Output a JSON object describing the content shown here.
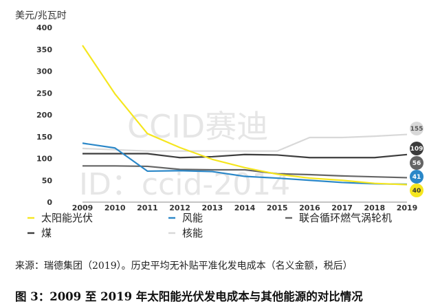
{
  "chart_data": {
    "type": "line",
    "ylabel": "美元/兆瓦时",
    "categories": [
      "2009",
      "2010",
      "2011",
      "2012",
      "2013",
      "2014",
      "2015",
      "2016",
      "2017",
      "2018",
      "2019"
    ],
    "ylim": [
      0,
      400
    ],
    "yticks": [
      0,
      50,
      100,
      150,
      200,
      250,
      300,
      350,
      400
    ],
    "grid": false,
    "legend_position": "bottom",
    "series": [
      {
        "name": "太阳能光伏",
        "color": "#f5e61e",
        "end_label": "40",
        "values": [
          359,
          248,
          157,
          125,
          98,
          79,
          64,
          55,
          50,
          43,
          40
        ]
      },
      {
        "name": "风能",
        "color": "#2a87c8",
        "end_label": "41",
        "values": [
          135,
          124,
          71,
          72,
          70,
          59,
          55,
          50,
          45,
          42,
          41
        ]
      },
      {
        "name": "联合循环燃气涡轮机",
        "color": "#646464",
        "end_label": "56",
        "values": [
          83,
          83,
          82,
          75,
          74,
          74,
          65,
          63,
          60,
          58,
          56
        ]
      },
      {
        "name": "煤",
        "color": "#3c3c3c",
        "end_label": "109",
        "values": [
          111,
          111,
          111,
          102,
          104,
          109,
          108,
          102,
          102,
          102,
          109
        ]
      },
      {
        "name": "核能",
        "color": "#d8d8d8",
        "end_label": "155",
        "values": [
          123,
          120,
          117,
          117,
          117,
          117,
          117,
          148,
          148,
          151,
          155
        ]
      }
    ]
  },
  "watermark": {
    "line1": "CCID赛迪",
    "line2": "ID：ccid-2014"
  },
  "source_text": "来源：瑞德集团（2019）。历史平均无补贴平准化发电成本（名义金额，税后）",
  "caption_text": "图 3：2009 至 2019 年太阳能光伏发电成本与其他能源的对比情况"
}
